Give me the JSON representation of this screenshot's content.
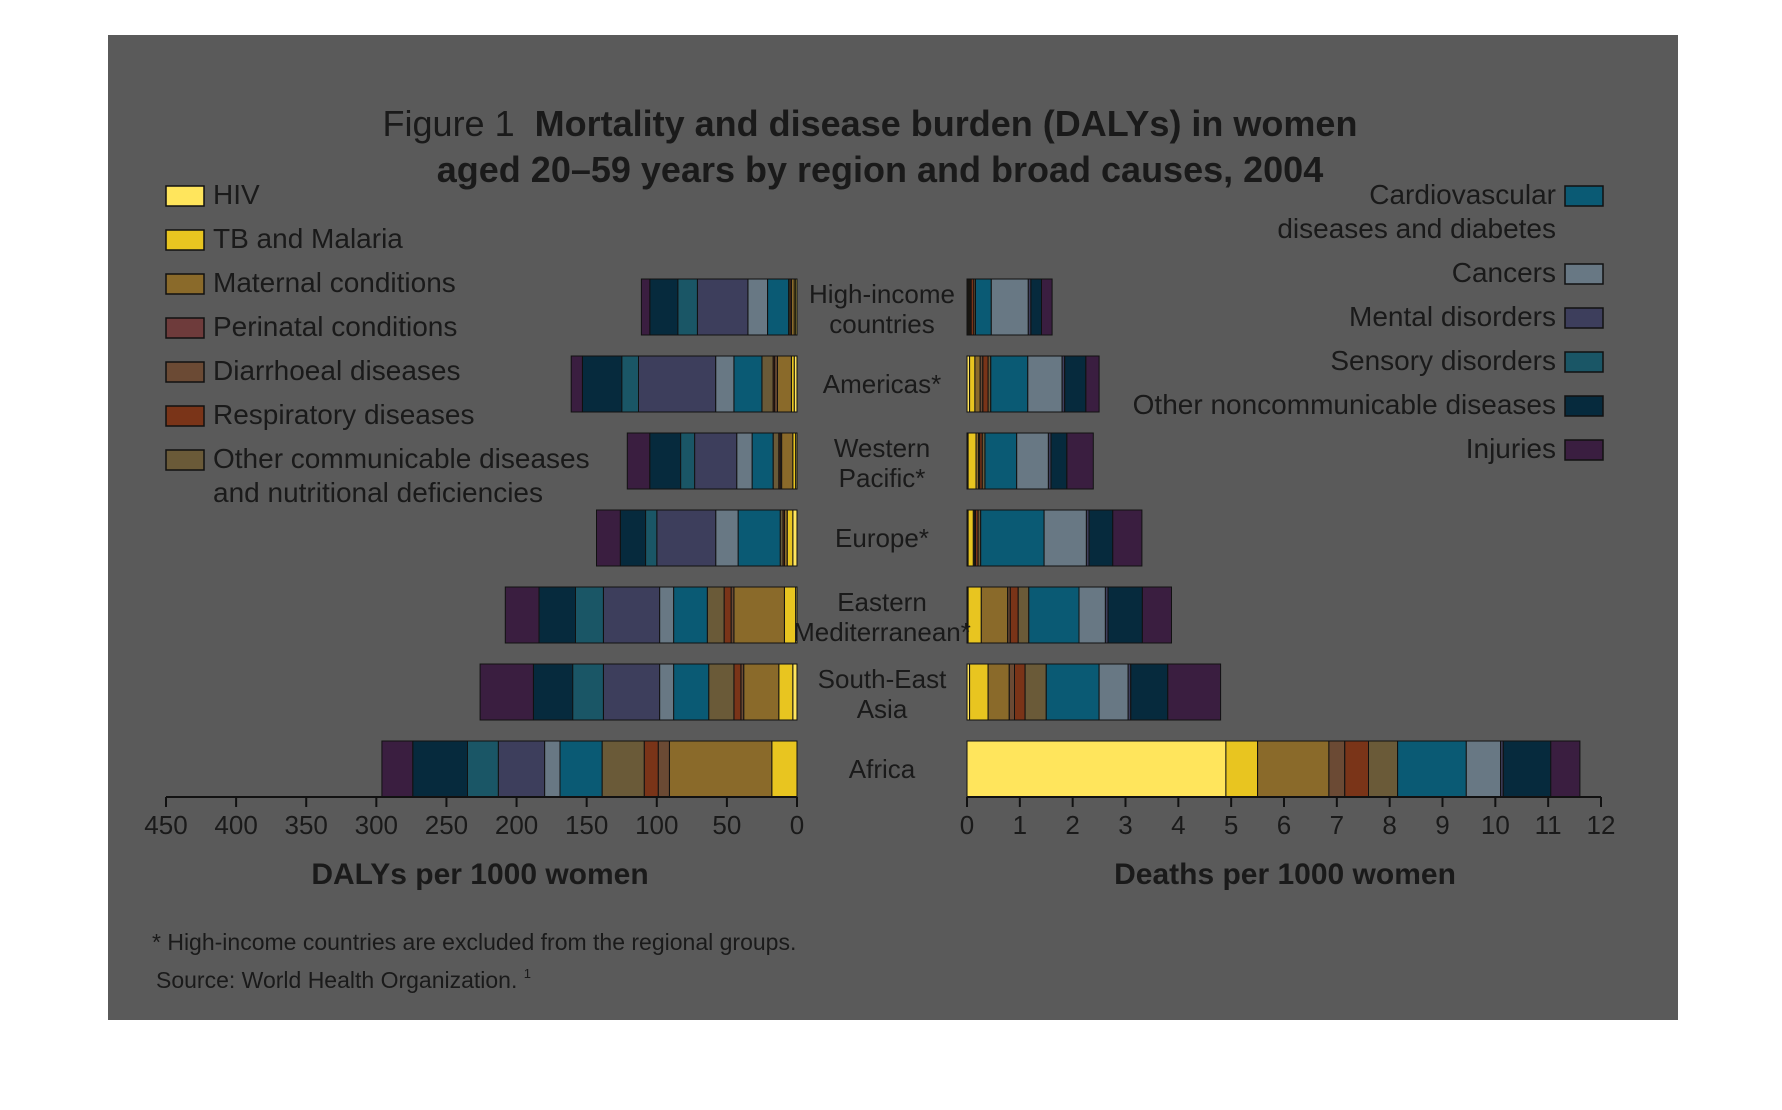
{
  "figure": {
    "prefix": "Figure 1",
    "title_line1": "Mortality and disease burden (DALYs) in women",
    "title_line2": "aged 20–59 years by region and broad causes, 2004",
    "footnote": "* High-income countries are excluded from the regional groups.",
    "source": "Source: World Health Organization.",
    "source_ref": "1"
  },
  "colors": {
    "background": "#5a5a5a",
    "HIV": "#ffe55c",
    "TB and Malaria": "#e8c520",
    "Maternal conditions": "#8a6a2a",
    "Perinatal conditions": "#6e3b3b",
    "Diarrhoeal diseases": "#6b4a34",
    "Respiratory diseases": "#7a3418",
    "Other communicable diseases and nutritional deficiencies": "#6a5a38",
    "Cardiovascular diseases and diabetes": "#0a5a74",
    "Cancers": "#687884",
    "Mental disorders": "#3d3e5c",
    "Sensory disorders": "#1a5666",
    "Other noncommunicable diseases": "#062a3d",
    "Injuries": "#3a1e40"
  },
  "legend_left": [
    {
      "key": "HIV",
      "label": "HIV"
    },
    {
      "key": "TB and Malaria",
      "label": "TB and Malaria"
    },
    {
      "key": "Maternal conditions",
      "label": "Maternal conditions"
    },
    {
      "key": "Perinatal conditions",
      "label": "Perinatal conditions"
    },
    {
      "key": "Diarrhoeal diseases",
      "label": "Diarrhoeal diseases"
    },
    {
      "key": "Respiratory diseases",
      "label": "Respiratory diseases"
    },
    {
      "key": "Other communicable diseases and nutritional deficiencies",
      "label": "Other communicable diseases",
      "label2": "and nutritional deficiencies"
    }
  ],
  "legend_right": [
    {
      "key": "Cardiovascular diseases and diabetes",
      "label": "Cardiovascular",
      "label2": "diseases and diabetes"
    },
    {
      "key": "Cancers",
      "label": "Cancers"
    },
    {
      "key": "Mental disorders",
      "label": "Mental disorders"
    },
    {
      "key": "Sensory disorders",
      "label": "Sensory disorders"
    },
    {
      "key": "Other noncommunicable diseases",
      "label": "Other noncommunicable diseases"
    },
    {
      "key": "Injuries",
      "label": "Injuries"
    }
  ],
  "chart_data": [
    {
      "type": "bar",
      "orientation": "horizontal-stacked",
      "direction": "right-to-left",
      "xlabel": "DALYs per 1000 women",
      "xlim": [
        0,
        450
      ],
      "xticks": [
        450,
        400,
        350,
        300,
        250,
        200,
        150,
        100,
        50,
        0
      ],
      "categories": [
        {
          "label": "High-income",
          "label2": "countries"
        },
        {
          "label": "Americas*"
        },
        {
          "label": "Western",
          "label2": "Pacific*"
        },
        {
          "label": "Europe*"
        },
        {
          "label": "Eastern",
          "label2": "Mediterranean*"
        },
        {
          "label": "South-East",
          "label2": "Asia"
        },
        {
          "label": "Africa"
        }
      ],
      "series": [
        {
          "name": "HIV",
          "values": [
            1,
            2,
            1,
            3,
            1,
            3,
            0
          ]
        },
        {
          "name": "TB and Malaria",
          "values": [
            1,
            2,
            2,
            4,
            8,
            10,
            18
          ]
        },
        {
          "name": "Maternal conditions",
          "values": [
            2,
            10,
            8,
            2,
            36,
            25,
            73
          ]
        },
        {
          "name": "Perinatal conditions",
          "values": [
            0,
            0,
            0,
            0,
            0,
            0,
            0
          ]
        },
        {
          "name": "Diarrhoeal diseases",
          "values": [
            0,
            2,
            1,
            0,
            2,
            2,
            8
          ]
        },
        {
          "name": "Respiratory diseases",
          "values": [
            1,
            1,
            1,
            1,
            5,
            5,
            10
          ]
        },
        {
          "name": "Other communicable diseases and nutritional deficiencies",
          "values": [
            1,
            8,
            4,
            2,
            12,
            18,
            30
          ]
        },
        {
          "name": "Cardiovascular diseases and diabetes",
          "values": [
            15,
            20,
            15,
            30,
            24,
            25,
            30
          ]
        },
        {
          "name": "Cancers",
          "values": [
            14,
            13,
            11,
            16,
            10,
            10,
            11
          ]
        },
        {
          "name": "Mental disorders",
          "values": [
            36,
            55,
            30,
            42,
            40,
            40,
            33
          ]
        },
        {
          "name": "Sensory disorders",
          "values": [
            14,
            12,
            10,
            8,
            20,
            22,
            22
          ]
        },
        {
          "name": "Other noncommunicable diseases",
          "values": [
            20,
            28,
            22,
            18,
            26,
            28,
            39
          ]
        },
        {
          "name": "Injuries",
          "values": [
            6,
            8,
            16,
            17,
            24,
            38,
            22
          ]
        }
      ]
    },
    {
      "type": "bar",
      "orientation": "horizontal-stacked",
      "direction": "left-to-right",
      "xlabel": "Deaths per 1000 women",
      "xlim": [
        0,
        12
      ],
      "xticks": [
        0,
        1,
        2,
        3,
        4,
        5,
        6,
        7,
        8,
        9,
        10,
        11,
        12
      ],
      "categories": [
        {
          "label": "High-income",
          "label2": "countries"
        },
        {
          "label": "Americas*"
        },
        {
          "label": "Western",
          "label2": "Pacific*"
        },
        {
          "label": "Europe*"
        },
        {
          "label": "Eastern",
          "label2": "Mediterranean*"
        },
        {
          "label": "South-East",
          "label2": "Asia"
        },
        {
          "label": "Africa"
        }
      ],
      "series": [
        {
          "name": "HIV",
          "values": [
            0.02,
            0.05,
            0.02,
            0.02,
            0.02,
            0.05,
            4.9
          ]
        },
        {
          "name": "TB and Malaria",
          "values": [
            0.02,
            0.1,
            0.15,
            0.1,
            0.25,
            0.35,
            0.6
          ]
        },
        {
          "name": "Maternal conditions",
          "values": [
            0.02,
            0.1,
            0.05,
            0.02,
            0.5,
            0.4,
            1.35
          ]
        },
        {
          "name": "Perinatal conditions",
          "values": [
            0.0,
            0.0,
            0.0,
            0.0,
            0.0,
            0.0,
            0.0
          ]
        },
        {
          "name": "Diarrhoeal diseases",
          "values": [
            0.02,
            0.05,
            0.02,
            0.02,
            0.05,
            0.1,
            0.3
          ]
        },
        {
          "name": "Respiratory diseases",
          "values": [
            0.05,
            0.1,
            0.05,
            0.05,
            0.15,
            0.2,
            0.45
          ]
        },
        {
          "name": "Other communicable diseases and nutritional deficiencies",
          "values": [
            0.03,
            0.05,
            0.05,
            0.05,
            0.2,
            0.4,
            0.55
          ]
        },
        {
          "name": "Cardiovascular diseases and diabetes",
          "values": [
            0.3,
            0.7,
            0.6,
            1.2,
            0.95,
            1.0,
            1.3
          ]
        },
        {
          "name": "Cancers",
          "values": [
            0.7,
            0.65,
            0.6,
            0.8,
            0.5,
            0.55,
            0.65
          ]
        },
        {
          "name": "Mental disorders",
          "values": [
            0.05,
            0.05,
            0.05,
            0.05,
            0.05,
            0.05,
            0.05
          ]
        },
        {
          "name": "Sensory disorders",
          "values": [
            0.0,
            0.0,
            0.0,
            0.0,
            0.0,
            0.0,
            0.0
          ]
        },
        {
          "name": "Other noncommunicable diseases",
          "values": [
            0.2,
            0.4,
            0.3,
            0.45,
            0.65,
            0.7,
            0.9
          ]
        },
        {
          "name": "Injuries",
          "values": [
            0.2,
            0.25,
            0.5,
            0.55,
            0.55,
            1.0,
            0.55
          ]
        }
      ]
    }
  ]
}
